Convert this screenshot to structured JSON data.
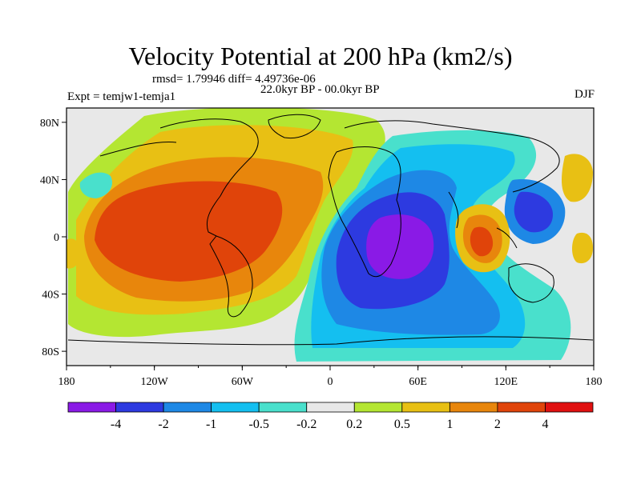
{
  "title": "Velocity Potential at 200 hPa (km2/s)",
  "subtitle_stats": "rmsd= 1.79946 diff= 4.49736e-06",
  "subtitle_period": "22.0kyr BP - 00.0kyr BP",
  "left_label": "Expt = temjw1-temja1",
  "right_label": "DJF",
  "axes": {
    "x_ticks": [
      "180",
      "120W",
      "60W",
      "0",
      "60E",
      "120E",
      "180"
    ],
    "y_ticks": [
      "80N",
      "40N",
      "0",
      "40S",
      "80S"
    ],
    "x_range": [
      -180,
      180
    ],
    "y_range": [
      -90,
      90
    ]
  },
  "colorbar": {
    "colors": [
      "#8a1ae6",
      "#2d3ae0",
      "#1e88e5",
      "#14bff0",
      "#49e0cc",
      "#e8e8e8",
      "#b4e632",
      "#e8c014",
      "#e8860c",
      "#e0440a",
      "#e01010"
    ],
    "labels": [
      "-4",
      "-2",
      "-1",
      "-0.5",
      "-0.2",
      "0.2",
      "0.5",
      "1",
      "2",
      "4"
    ]
  }
}
